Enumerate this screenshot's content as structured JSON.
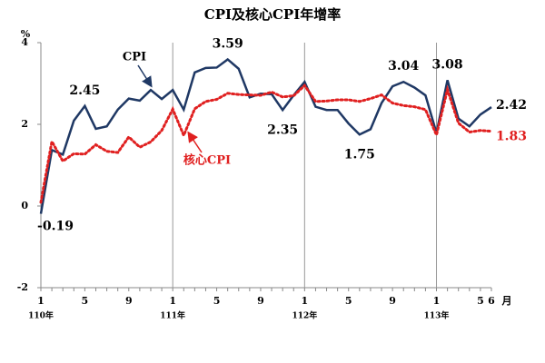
{
  "chart_data": {
    "type": "line",
    "title": "CPI及核心CPI年增率",
    "y_unit": "%",
    "x_unit": "月",
    "categories": [
      "1",
      null,
      null,
      null,
      "5",
      null,
      null,
      null,
      "9",
      null,
      null,
      null,
      "1",
      null,
      null,
      null,
      "5",
      null,
      null,
      null,
      "9",
      null,
      null,
      null,
      "1",
      null,
      null,
      null,
      "5",
      null,
      null,
      null,
      "9",
      null,
      null,
      null,
      "1",
      null,
      null,
      null,
      "5",
      "6"
    ],
    "year_categories": [
      "110年",
      null,
      null,
      null,
      null,
      null,
      null,
      null,
      null,
      null,
      null,
      null,
      "111年",
      null,
      null,
      null,
      null,
      null,
      null,
      null,
      null,
      null,
      null,
      null,
      "112年",
      null,
      null,
      null,
      null,
      null,
      null,
      null,
      null,
      null,
      null,
      null,
      "113年",
      null,
      null,
      null,
      null,
      null
    ],
    "ylim": [
      -2,
      4
    ],
    "yticks": [
      4,
      2,
      0,
      -2
    ],
    "series": [
      {
        "name": "CPI",
        "color": "#1f3864",
        "dash": false,
        "values": [
          -0.19,
          1.37,
          1.26,
          2.09,
          2.45,
          1.89,
          1.95,
          2.36,
          2.63,
          2.58,
          2.84,
          2.62,
          2.84,
          2.36,
          3.27,
          3.38,
          3.39,
          3.59,
          3.36,
          2.66,
          2.75,
          2.74,
          2.35,
          2.71,
          3.04,
          2.43,
          2.35,
          2.35,
          2.02,
          1.75,
          1.88,
          2.52,
          2.93,
          3.04,
          2.9,
          2.71,
          1.79,
          3.08,
          2.14,
          1.95,
          2.24,
          2.42
        ],
        "value_labels": [
          "-0.19",
          null,
          null,
          null,
          "2.45",
          null,
          null,
          null,
          null,
          null,
          null,
          null,
          null,
          null,
          null,
          null,
          null,
          "3.59",
          null,
          null,
          null,
          null,
          "2.35",
          null,
          null,
          null,
          null,
          null,
          null,
          "1.75",
          null,
          null,
          null,
          "3.04",
          null,
          null,
          null,
          "3.08",
          null,
          null,
          null,
          "2.42"
        ]
      },
      {
        "name": "核心CPI",
        "color": "#e02020",
        "dash": true,
        "values": [
          0.09,
          1.58,
          1.1,
          1.28,
          1.27,
          1.5,
          1.34,
          1.31,
          1.69,
          1.44,
          1.57,
          1.85,
          2.37,
          1.73,
          2.38,
          2.56,
          2.61,
          2.76,
          2.73,
          2.72,
          2.71,
          2.79,
          2.67,
          2.7,
          2.95,
          2.56,
          2.57,
          2.6,
          2.6,
          2.56,
          2.63,
          2.72,
          2.52,
          2.46,
          2.43,
          2.36,
          1.74,
          2.85,
          2.03,
          1.81,
          1.85,
          1.83
        ],
        "value_labels": [
          null,
          null,
          null,
          null,
          null,
          null,
          null,
          null,
          null,
          null,
          null,
          null,
          null,
          null,
          null,
          null,
          null,
          null,
          null,
          null,
          null,
          null,
          null,
          null,
          null,
          null,
          null,
          null,
          null,
          null,
          null,
          null,
          null,
          null,
          null,
          null,
          null,
          null,
          null,
          null,
          null,
          "1.83"
        ]
      }
    ]
  }
}
